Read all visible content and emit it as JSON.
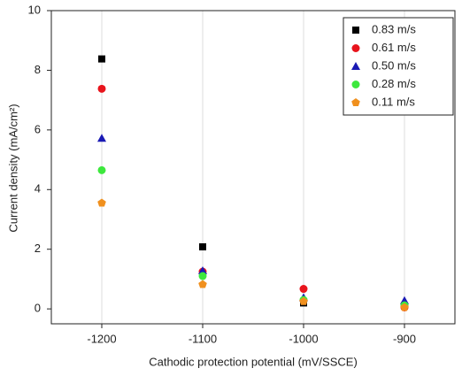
{
  "chart_data": {
    "type": "scatter",
    "xlabel": "Cathodic protection potential (mV/SSCE)",
    "ylabel": "Current density (mA/cm²)",
    "x": [
      -1200,
      -1100,
      -1000,
      -900
    ],
    "series": [
      {
        "name": "0.83 m/s",
        "color": "#000000",
        "marker": "square",
        "values": [
          8.38,
          2.08,
          0.2,
          0.1
        ]
      },
      {
        "name": "0.61 m/s",
        "color": "#e8141c",
        "marker": "circle",
        "values": [
          7.38,
          1.25,
          0.67,
          0.05
        ]
      },
      {
        "name": "0.50 m/s",
        "color": "#1a1ab4",
        "marker": "triangle",
        "values": [
          5.72,
          1.28,
          0.38,
          0.28
        ]
      },
      {
        "name": "0.28 m/s",
        "color": "#3de83d",
        "marker": "circle",
        "values": [
          4.65,
          1.1,
          0.3,
          0.12
        ]
      },
      {
        "name": "0.11 m/s",
        "color": "#f0901e",
        "marker": "pentagon",
        "values": [
          3.55,
          0.82,
          0.25,
          0.05
        ]
      }
    ],
    "xlim": [
      -1250,
      -850
    ],
    "xticks": [
      -1200,
      -1100,
      -1000,
      -900
    ],
    "ylim": [
      -0.5,
      10
    ],
    "yticks": [
      0,
      2,
      4,
      6,
      8,
      10
    ],
    "grid": "x",
    "legend": "upper right"
  }
}
